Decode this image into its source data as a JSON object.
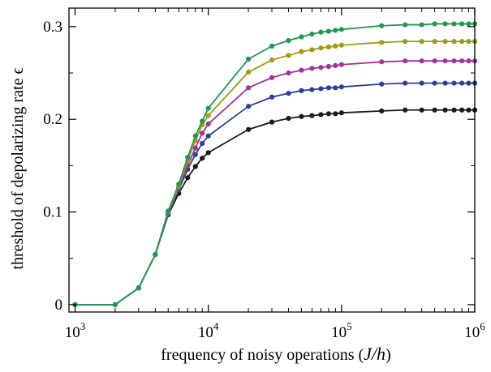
{
  "chart_data": {
    "type": "line",
    "xscale": "log",
    "xlim": [
      900,
      1000000
    ],
    "ylim": [
      -0.008,
      0.32
    ],
    "xlabel": "frequency of noisy operations (J/h)",
    "xlabel_parts": {
      "prefix": "frequency of noisy operations (",
      "math": "J/h",
      "suffix": ")"
    },
    "ylabel": "threshold of depolarizing rate ϵ",
    "x_ticks": [
      {
        "value": 1000,
        "base": "10",
        "exp": "3"
      },
      {
        "value": 10000,
        "base": "10",
        "exp": "4"
      },
      {
        "value": 100000,
        "base": "10",
        "exp": "5"
      },
      {
        "value": 1000000,
        "base": "10",
        "exp": "6"
      }
    ],
    "y_ticks": [
      {
        "value": 0,
        "label": "0"
      },
      {
        "value": 0.1,
        "label": "0.1"
      },
      {
        "value": 0.2,
        "label": "0.2"
      },
      {
        "value": 0.3,
        "label": "0.3"
      }
    ],
    "x": [
      1000,
      2000,
      3000,
      4000,
      5000,
      6000,
      7000,
      8000,
      9000,
      10000,
      20000,
      30000,
      40000,
      50000,
      60000,
      70000,
      80000,
      90000,
      100000,
      200000,
      300000,
      400000,
      500000,
      600000,
      700000,
      800000,
      900000,
      1000000
    ],
    "series": [
      {
        "color": "#1a1a1a",
        "values": [
          0,
          0,
          0.018,
          0.054,
          0.097,
          0.12,
          0.137,
          0.149,
          0.158,
          0.164,
          0.189,
          0.197,
          0.201,
          0.203,
          0.204,
          0.205,
          0.206,
          0.206,
          0.207,
          0.209,
          0.21,
          0.21,
          0.21,
          0.21,
          0.21,
          0.21,
          0.21,
          0.21
        ]
      },
      {
        "color": "#2b3f9e",
        "values": [
          0,
          0,
          0.018,
          0.054,
          0.098,
          0.124,
          0.146,
          0.162,
          0.174,
          0.182,
          0.214,
          0.224,
          0.228,
          0.231,
          0.232,
          0.233,
          0.234,
          0.234,
          0.235,
          0.238,
          0.239,
          0.239,
          0.239,
          0.239,
          0.239,
          0.239,
          0.239,
          0.239
        ]
      },
      {
        "color": "#a3329c",
        "values": [
          0,
          0,
          0.018,
          0.054,
          0.099,
          0.126,
          0.15,
          0.169,
          0.185,
          0.195,
          0.234,
          0.245,
          0.25,
          0.253,
          0.255,
          0.256,
          0.257,
          0.258,
          0.259,
          0.262,
          0.263,
          0.263,
          0.263,
          0.263,
          0.263,
          0.263,
          0.263,
          0.263
        ]
      },
      {
        "color": "#a39a12",
        "values": [
          0,
          0,
          0.018,
          0.054,
          0.1,
          0.128,
          0.155,
          0.177,
          0.194,
          0.204,
          0.251,
          0.264,
          0.269,
          0.273,
          0.275,
          0.277,
          0.278,
          0.279,
          0.28,
          0.283,
          0.284,
          0.284,
          0.284,
          0.284,
          0.284,
          0.284,
          0.284,
          0.284
        ]
      },
      {
        "color": "#1e9a50",
        "values": [
          0,
          0,
          0.018,
          0.054,
          0.101,
          0.13,
          0.159,
          0.182,
          0.198,
          0.212,
          0.265,
          0.279,
          0.285,
          0.289,
          0.292,
          0.294,
          0.295,
          0.296,
          0.297,
          0.301,
          0.302,
          0.302,
          0.303,
          0.303,
          0.303,
          0.303,
          0.303,
          0.303
        ]
      }
    ]
  }
}
